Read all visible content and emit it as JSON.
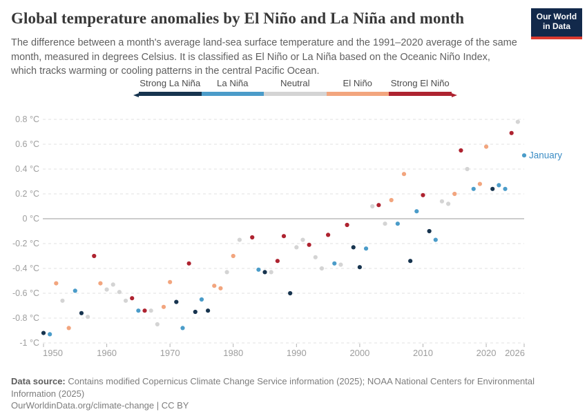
{
  "header": {
    "title": "Global temperature anomalies by El Niño and La Niña and month",
    "subtitle": "The difference between a month's average land-sea surface temperature and the 1991–2020 average of the same month, measured in degrees Celsius. It is classified as El Niño or La Niña based on the Oceanic Niño Index, which tracks warming or cooling patterns in the central Pacific Ocean.",
    "logo": {
      "line1": "Our World",
      "line2": "in Data",
      "bg": "#12294B",
      "stripe": "#DC3A2F"
    }
  },
  "legend": {
    "categories": [
      {
        "id": "strong-la-nina",
        "label": "Strong La Niña",
        "color": "#17344F"
      },
      {
        "id": "la-nina",
        "label": "La Niña",
        "color": "#4B9CC9"
      },
      {
        "id": "neutral",
        "label": "Neutral",
        "color": "#D4D4D4"
      },
      {
        "id": "el-nino",
        "label": "El Niño",
        "color": "#F2A57E"
      },
      {
        "id": "strong-el-nino",
        "label": "Strong El Niño",
        "color": "#AE2330"
      }
    ]
  },
  "chart_data": {
    "type": "scatter",
    "series_label": "January",
    "y_unit": "°C",
    "xlim": [
      1950,
      2026
    ],
    "ylim": [
      -1,
      0.8
    ],
    "grid": true,
    "x_ticks": [
      1950,
      1960,
      1970,
      1980,
      1990,
      2000,
      2010,
      2020,
      2026
    ],
    "y_ticks": [
      0.8,
      0.6,
      0.4,
      0.2,
      0,
      -0.2,
      -0.4,
      -0.6,
      -0.8,
      -1
    ],
    "y_tick_labels": [
      "0.8 °C",
      "0.6 °C",
      "0.4 °C",
      "0.2 °C",
      "0 °C",
      "-0.2 °C",
      "-0.4 °C",
      "-0.6 °C",
      "-0.8 °C",
      "-1 °C"
    ],
    "annotation": {
      "text": "January",
      "year": 2026,
      "value": 0.51,
      "color": "#3C8DC5"
    },
    "points": [
      {
        "year": 1950,
        "value": -0.92,
        "category": "strong-la-nina"
      },
      {
        "year": 1951,
        "value": -0.93,
        "category": "la-nina"
      },
      {
        "year": 1952,
        "value": -0.52,
        "category": "el-nino"
      },
      {
        "year": 1953,
        "value": -0.66,
        "category": "neutral"
      },
      {
        "year": 1954,
        "value": -0.88,
        "category": "el-nino"
      },
      {
        "year": 1955,
        "value": -0.58,
        "category": "la-nina"
      },
      {
        "year": 1956,
        "value": -0.76,
        "category": "strong-la-nina"
      },
      {
        "year": 1957,
        "value": -0.79,
        "category": "neutral"
      },
      {
        "year": 1958,
        "value": -0.3,
        "category": "strong-el-nino"
      },
      {
        "year": 1959,
        "value": -0.52,
        "category": "el-nino"
      },
      {
        "year": 1960,
        "value": -0.57,
        "category": "neutral"
      },
      {
        "year": 1961,
        "value": -0.53,
        "category": "neutral"
      },
      {
        "year": 1962,
        "value": -0.59,
        "category": "neutral"
      },
      {
        "year": 1963,
        "value": -0.66,
        "category": "neutral"
      },
      {
        "year": 1964,
        "value": -0.64,
        "category": "strong-el-nino"
      },
      {
        "year": 1965,
        "value": -0.74,
        "category": "la-nina"
      },
      {
        "year": 1966,
        "value": -0.74,
        "category": "strong-el-nino"
      },
      {
        "year": 1967,
        "value": -0.74,
        "category": "neutral"
      },
      {
        "year": 1968,
        "value": -0.85,
        "category": "neutral"
      },
      {
        "year": 1969,
        "value": -0.71,
        "category": "el-nino"
      },
      {
        "year": 1970,
        "value": -0.51,
        "category": "el-nino"
      },
      {
        "year": 1971,
        "value": -0.67,
        "category": "strong-la-nina"
      },
      {
        "year": 1972,
        "value": -0.88,
        "category": "la-nina"
      },
      {
        "year": 1973,
        "value": -0.36,
        "category": "strong-el-nino"
      },
      {
        "year": 1974,
        "value": -0.75,
        "category": "strong-la-nina"
      },
      {
        "year": 1975,
        "value": -0.65,
        "category": "la-nina"
      },
      {
        "year": 1976,
        "value": -0.74,
        "category": "strong-la-nina"
      },
      {
        "year": 1977,
        "value": -0.54,
        "category": "el-nino"
      },
      {
        "year": 1978,
        "value": -0.56,
        "category": "el-nino"
      },
      {
        "year": 1979,
        "value": -0.43,
        "category": "neutral"
      },
      {
        "year": 1980,
        "value": -0.3,
        "category": "el-nino"
      },
      {
        "year": 1981,
        "value": -0.17,
        "category": "neutral"
      },
      {
        "year": 1983,
        "value": -0.15,
        "category": "strong-el-nino"
      },
      {
        "year": 1984,
        "value": -0.41,
        "category": "la-nina"
      },
      {
        "year": 1985,
        "value": -0.43,
        "category": "strong-la-nina"
      },
      {
        "year": 1986,
        "value": -0.43,
        "category": "neutral"
      },
      {
        "year": 1987,
        "value": -0.34,
        "category": "strong-el-nino"
      },
      {
        "year": 1988,
        "value": -0.14,
        "category": "strong-el-nino"
      },
      {
        "year": 1989,
        "value": -0.6,
        "category": "strong-la-nina"
      },
      {
        "year": 1990,
        "value": -0.23,
        "category": "neutral"
      },
      {
        "year": 1991,
        "value": -0.17,
        "category": "neutral"
      },
      {
        "year": 1992,
        "value": -0.21,
        "category": "strong-el-nino"
      },
      {
        "year": 1993,
        "value": -0.31,
        "category": "neutral"
      },
      {
        "year": 1994,
        "value": -0.4,
        "category": "neutral"
      },
      {
        "year": 1995,
        "value": -0.13,
        "category": "strong-el-nino"
      },
      {
        "year": 1996,
        "value": -0.36,
        "category": "la-nina"
      },
      {
        "year": 1997,
        "value": -0.37,
        "category": "neutral"
      },
      {
        "year": 1998,
        "value": -0.05,
        "category": "strong-el-nino"
      },
      {
        "year": 1999,
        "value": -0.23,
        "category": "strong-la-nina"
      },
      {
        "year": 2000,
        "value": -0.39,
        "category": "strong-la-nina"
      },
      {
        "year": 2001,
        "value": -0.24,
        "category": "la-nina"
      },
      {
        "year": 2002,
        "value": 0.1,
        "category": "neutral"
      },
      {
        "year": 2003,
        "value": 0.11,
        "category": "strong-el-nino"
      },
      {
        "year": 2004,
        "value": -0.04,
        "category": "neutral"
      },
      {
        "year": 2005,
        "value": 0.15,
        "category": "el-nino"
      },
      {
        "year": 2006,
        "value": -0.04,
        "category": "la-nina"
      },
      {
        "year": 2007,
        "value": 0.36,
        "category": "el-nino"
      },
      {
        "year": 2008,
        "value": -0.34,
        "category": "strong-la-nina"
      },
      {
        "year": 2009,
        "value": 0.06,
        "category": "la-nina"
      },
      {
        "year": 2010,
        "value": 0.19,
        "category": "strong-el-nino"
      },
      {
        "year": 2011,
        "value": -0.1,
        "category": "strong-la-nina"
      },
      {
        "year": 2012,
        "value": -0.17,
        "category": "la-nina"
      },
      {
        "year": 2013,
        "value": 0.14,
        "category": "neutral"
      },
      {
        "year": 2014,
        "value": 0.12,
        "category": "neutral"
      },
      {
        "year": 2015,
        "value": 0.2,
        "category": "el-nino"
      },
      {
        "year": 2016,
        "value": 0.55,
        "category": "strong-el-nino"
      },
      {
        "year": 2017,
        "value": 0.4,
        "category": "neutral"
      },
      {
        "year": 2018,
        "value": 0.24,
        "category": "la-nina"
      },
      {
        "year": 2019,
        "value": 0.28,
        "category": "el-nino"
      },
      {
        "year": 2020,
        "value": 0.58,
        "category": "el-nino"
      },
      {
        "year": 2021,
        "value": 0.24,
        "category": "strong-la-nina"
      },
      {
        "year": 2022,
        "value": 0.27,
        "category": "la-nina"
      },
      {
        "year": 2023,
        "value": 0.24,
        "category": "la-nina"
      },
      {
        "year": 2024,
        "value": 0.69,
        "category": "strong-el-nino"
      },
      {
        "year": 2025,
        "value": 0.78,
        "category": "neutral"
      },
      {
        "year": 2026,
        "value": 0.51,
        "category": "la-nina"
      }
    ]
  },
  "footer": {
    "datasource_label": "Data source:",
    "datasource_text": " Contains modified Copernicus Climate Change Service information (2025); NOAA National Centers for Environmental Information (2025)",
    "attribution": "OurWorldinData.org/climate-change | CC BY"
  }
}
